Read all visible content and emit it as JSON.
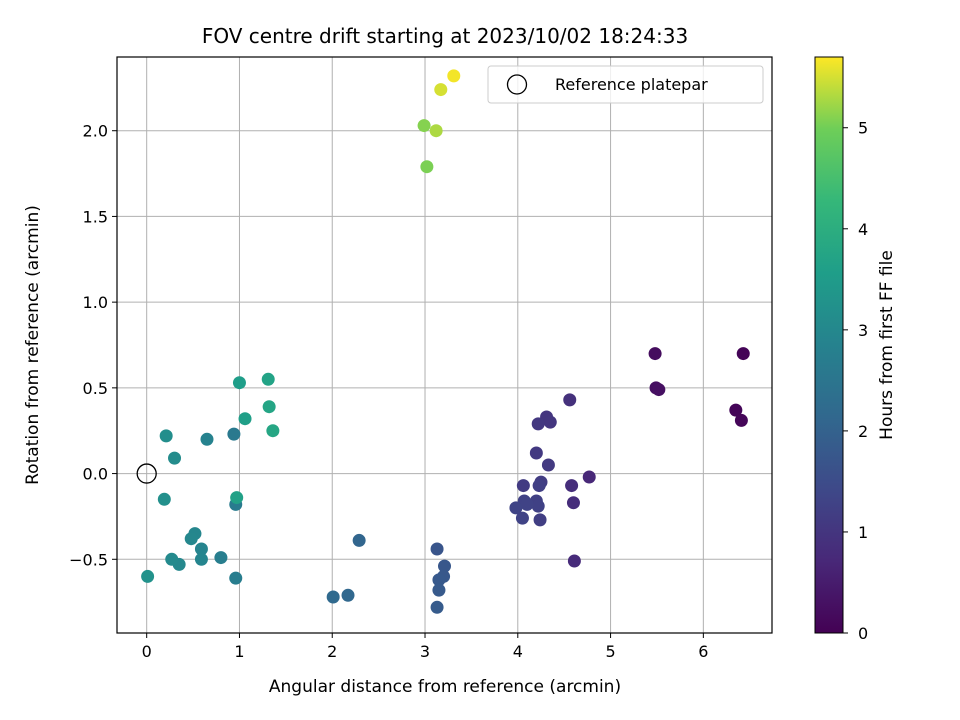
{
  "chart_data": {
    "type": "scatter",
    "title": "FOV centre drift starting at 2023/10/02 18:24:33",
    "xlabel": "Angular distance from reference (arcmin)",
    "ylabel": "Rotation from reference (arcmin)",
    "xlim": [
      -0.32,
      6.74
    ],
    "ylim": [
      -0.93,
      2.43
    ],
    "xticks": [
      0,
      1,
      2,
      3,
      4,
      5,
      6
    ],
    "yticks": [
      -0.5,
      0.0,
      0.5,
      1.0,
      1.5,
      2.0
    ],
    "xtick_labels": [
      "0",
      "1",
      "2",
      "3",
      "4",
      "5",
      "6"
    ],
    "ytick_labels": [
      "−0.5",
      "0.0",
      "0.5",
      "1.0",
      "1.5",
      "2.0"
    ],
    "grid": true,
    "legend": {
      "placement": "top-right",
      "entries": [
        "Reference platepar"
      ]
    },
    "reference_point": {
      "x": 0,
      "y": 0
    },
    "colorbar": {
      "label": "Hours from first FF file",
      "colormap": "viridis",
      "range": [
        0,
        5.7
      ],
      "ticks": [
        0,
        1,
        2,
        3,
        4,
        5
      ],
      "tick_labels": [
        "0",
        "1",
        "2",
        "3",
        "4",
        "5"
      ]
    },
    "points": [
      {
        "x": 6.43,
        "y": 0.7,
        "c": 0.05
      },
      {
        "x": 6.35,
        "y": 0.37,
        "c": 0.08
      },
      {
        "x": 6.41,
        "y": 0.31,
        "c": 0.1
      },
      {
        "x": 5.48,
        "y": 0.7,
        "c": 0.2
      },
      {
        "x": 5.49,
        "y": 0.5,
        "c": 0.25
      },
      {
        "x": 5.52,
        "y": 0.49,
        "c": 0.28
      },
      {
        "x": 4.56,
        "y": 0.43,
        "c": 0.9
      },
      {
        "x": 4.77,
        "y": -0.02,
        "c": 0.72
      },
      {
        "x": 4.61,
        "y": -0.51,
        "c": 0.78
      },
      {
        "x": 4.58,
        "y": -0.07,
        "c": 0.85
      },
      {
        "x": 4.6,
        "y": -0.17,
        "c": 0.82
      },
      {
        "x": 4.31,
        "y": 0.33,
        "c": 1.0
      },
      {
        "x": 4.35,
        "y": 0.3,
        "c": 1.02
      },
      {
        "x": 4.22,
        "y": 0.29,
        "c": 1.05
      },
      {
        "x": 4.2,
        "y": 0.12,
        "c": 1.08
      },
      {
        "x": 4.33,
        "y": 0.05,
        "c": 1.1
      },
      {
        "x": 4.25,
        "y": -0.05,
        "c": 1.15
      },
      {
        "x": 4.23,
        "y": -0.07,
        "c": 1.2
      },
      {
        "x": 4.2,
        "y": -0.16,
        "c": 1.22
      },
      {
        "x": 4.22,
        "y": -0.19,
        "c": 1.25
      },
      {
        "x": 4.24,
        "y": -0.27,
        "c": 1.18
      },
      {
        "x": 4.06,
        "y": -0.07,
        "c": 1.12
      },
      {
        "x": 4.07,
        "y": -0.16,
        "c": 1.28
      },
      {
        "x": 4.1,
        "y": -0.18,
        "c": 1.3
      },
      {
        "x": 3.98,
        "y": -0.2,
        "c": 1.32
      },
      {
        "x": 4.05,
        "y": -0.26,
        "c": 1.3
      },
      {
        "x": 3.13,
        "y": -0.44,
        "c": 1.7
      },
      {
        "x": 3.21,
        "y": -0.54,
        "c": 1.75
      },
      {
        "x": 3.2,
        "y": -0.6,
        "c": 1.78
      },
      {
        "x": 3.15,
        "y": -0.62,
        "c": 1.8
      },
      {
        "x": 3.15,
        "y": -0.68,
        "c": 1.82
      },
      {
        "x": 3.13,
        "y": -0.78,
        "c": 1.85
      },
      {
        "x": 2.29,
        "y": -0.39,
        "c": 2.1
      },
      {
        "x": 2.17,
        "y": -0.71,
        "c": 2.15
      },
      {
        "x": 2.01,
        "y": -0.72,
        "c": 2.2
      },
      {
        "x": 0.94,
        "y": 0.23,
        "c": 2.6
      },
      {
        "x": 0.96,
        "y": -0.18,
        "c": 2.65
      },
      {
        "x": 0.96,
        "y": -0.61,
        "c": 2.7
      },
      {
        "x": 0.8,
        "y": -0.49,
        "c": 2.75
      },
      {
        "x": 0.65,
        "y": 0.2,
        "c": 2.85
      },
      {
        "x": 0.59,
        "y": -0.44,
        "c": 2.9
      },
      {
        "x": 0.59,
        "y": -0.5,
        "c": 2.92
      },
      {
        "x": 0.52,
        "y": -0.35,
        "c": 2.95
      },
      {
        "x": 0.48,
        "y": -0.38,
        "c": 2.97
      },
      {
        "x": 0.35,
        "y": -0.53,
        "c": 3.0
      },
      {
        "x": 0.27,
        "y": -0.5,
        "c": 3.05
      },
      {
        "x": 0.3,
        "y": 0.09,
        "c": 3.1
      },
      {
        "x": 0.21,
        "y": 0.22,
        "c": 3.15
      },
      {
        "x": 0.19,
        "y": -0.15,
        "c": 3.2
      },
      {
        "x": 0.01,
        "y": -0.6,
        "c": 3.25
      },
      {
        "x": 1.0,
        "y": 0.53,
        "c": 3.55
      },
      {
        "x": 1.06,
        "y": 0.32,
        "c": 3.6
      },
      {
        "x": 0.97,
        "y": -0.14,
        "c": 3.65
      },
      {
        "x": 1.31,
        "y": 0.55,
        "c": 3.7
      },
      {
        "x": 1.32,
        "y": 0.39,
        "c": 3.75
      },
      {
        "x": 1.36,
        "y": 0.25,
        "c": 3.8
      },
      {
        "x": 3.02,
        "y": 1.79,
        "c": 5.05
      },
      {
        "x": 2.99,
        "y": 2.03,
        "c": 5.1
      },
      {
        "x": 3.12,
        "y": 2.0,
        "c": 5.3
      },
      {
        "x": 3.17,
        "y": 2.24,
        "c": 5.5
      },
      {
        "x": 3.31,
        "y": 2.32,
        "c": 5.65
      }
    ]
  }
}
